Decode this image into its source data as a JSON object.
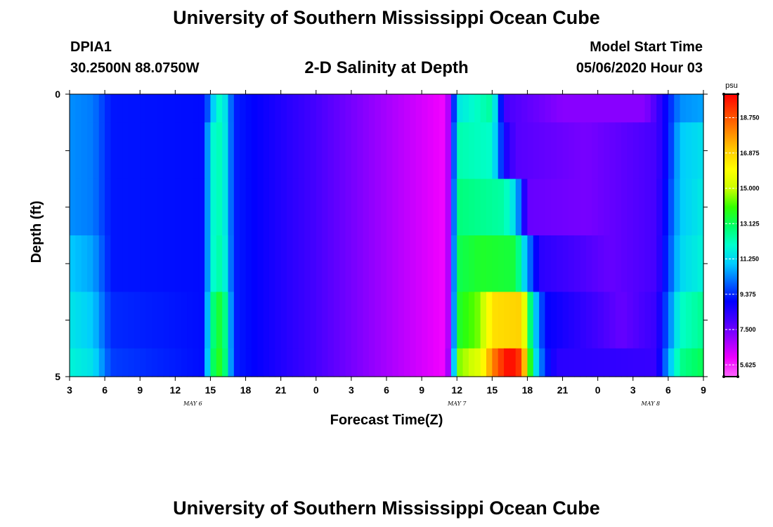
{
  "header": {
    "title": "University of Southern Mississippi Ocean Cube",
    "station_id": "DPIA1",
    "station_coords": "30.2500N 88.0750W",
    "subtitle": "2-D Salinity at Depth",
    "model_start_label": "Model Start Time",
    "model_start_value": "05/06/2020 Hour 03"
  },
  "footer": {
    "title": "University of Southern Mississippi Ocean Cube"
  },
  "chart_data": {
    "type": "heatmap",
    "xlabel": "Forecast Time(Z)",
    "ylabel": "Depth (ft)",
    "x_unit": "hours since model start (05/06/2020 03Z)",
    "x_range": [
      0,
      54
    ],
    "y_range": [
      0,
      5
    ],
    "y_ticks": [
      "0",
      "5"
    ],
    "x_tick_labels": [
      "3",
      "6",
      "9",
      "12",
      "15",
      "18",
      "21",
      "0",
      "3",
      "6",
      "9",
      "12",
      "15",
      "18",
      "21",
      "0",
      "3",
      "6",
      "9"
    ],
    "date_labels": [
      "MAY 6",
      "MAY 7",
      "MAY 8"
    ],
    "date_label_hours": [
      10.5,
      33,
      49.5
    ],
    "colorbar": {
      "unit": "psu",
      "min": 5.0,
      "max": 20.0,
      "tick_values": [
        5.625,
        7.5,
        9.375,
        11.25,
        13.125,
        15.0,
        16.875,
        18.75
      ],
      "tick_labels": [
        "5.625",
        "7.500",
        "9.375",
        "11.250",
        "13.125",
        "15.000",
        "16.875",
        "18.750"
      ],
      "colors": [
        "#ff66ff",
        "#ee00ff",
        "#9900ff",
        "#4400ff",
        "#0000ff",
        "#0066ff",
        "#00ccff",
        "#00ffcc",
        "#00ff66",
        "#33ff00",
        "#ccff00",
        "#ffff00",
        "#ffcc00",
        "#ff8800",
        "#ff4400",
        "#ff0000"
      ]
    },
    "depth_rows": [
      "0-0.5",
      "0.5-1.5",
      "1.5-2.5",
      "2.5-3.5",
      "3.5-4.5",
      "4.5-5"
    ],
    "salinity_psu": [
      {
        "hours": [
          0,
          2,
          3.5,
          11.5,
          12.5,
          13,
          14,
          32,
          32.5,
          33,
          36,
          36.5,
          37,
          42,
          49,
          50,
          51,
          52,
          54
        ],
        "values": [
          10.4,
          10.2,
          9.2,
          9.1,
          11.8,
          12.2,
          9.3,
          5.9,
          7.5,
          11.5,
          12.5,
          10.4,
          8.0,
          7.2,
          7.2,
          8.0,
          9.2,
          10.4,
          10.6
        ]
      },
      {
        "hours": [
          0,
          2,
          3.5,
          11.5,
          12,
          13,
          14,
          32,
          32.5,
          33,
          36,
          37,
          38,
          44,
          50,
          51,
          52,
          54
        ],
        "values": [
          10.4,
          10.2,
          9.2,
          9.1,
          11.8,
          12.3,
          9.3,
          5.9,
          7.5,
          12.3,
          12.0,
          8.8,
          7.8,
          7.4,
          8.0,
          9.2,
          11.0,
          11.4
        ]
      },
      {
        "hours": [
          0,
          2,
          3.5,
          11.5,
          12,
          13,
          14,
          32,
          32.5,
          33,
          37,
          38,
          39,
          44,
          50,
          51,
          52,
          54
        ],
        "values": [
          10.4,
          10.2,
          9.2,
          9.1,
          11.8,
          12.3,
          9.3,
          5.9,
          7.5,
          12.8,
          12.4,
          11.2,
          7.6,
          7.4,
          8.0,
          9.4,
          11.0,
          11.6
        ]
      },
      {
        "hours": [
          0,
          2,
          3.5,
          11.5,
          12,
          13,
          14,
          32,
          32.5,
          33,
          35,
          38,
          39,
          40,
          46,
          50,
          51,
          52,
          54
        ],
        "values": [
          11.0,
          10.6,
          9.2,
          9.1,
          11.8,
          12.5,
          9.3,
          5.9,
          7.5,
          13.2,
          13.6,
          13.4,
          10.5,
          8.4,
          7.6,
          8.0,
          9.6,
          11.2,
          11.8
        ]
      },
      {
        "hours": [
          0,
          2,
          3.5,
          11.5,
          12,
          13,
          14,
          32,
          32.5,
          33,
          35,
          36,
          38.5,
          39.5,
          40.5,
          47,
          50,
          51,
          52,
          54
        ],
        "values": [
          11.5,
          11.0,
          9.4,
          9.1,
          12.5,
          13.8,
          9.3,
          5.9,
          7.5,
          13.5,
          14.5,
          16.6,
          16.9,
          11.5,
          9.0,
          7.6,
          8.2,
          10.0,
          12.0,
          12.6
        ]
      },
      {
        "hours": [
          0,
          2,
          3.5,
          11.5,
          12,
          13,
          14,
          32,
          32.5,
          33,
          35,
          36,
          37,
          37.5,
          38.5,
          39.5,
          40.5,
          41.5,
          50,
          51,
          52,
          54
        ],
        "values": [
          11.8,
          11.4,
          9.6,
          9.1,
          12.8,
          14.0,
          9.3,
          5.9,
          7.8,
          14.4,
          15.5,
          18.0,
          19.5,
          20.0,
          19.0,
          12.0,
          9.4,
          8.4,
          8.2,
          10.6,
          12.6,
          13.2
        ]
      }
    ]
  }
}
